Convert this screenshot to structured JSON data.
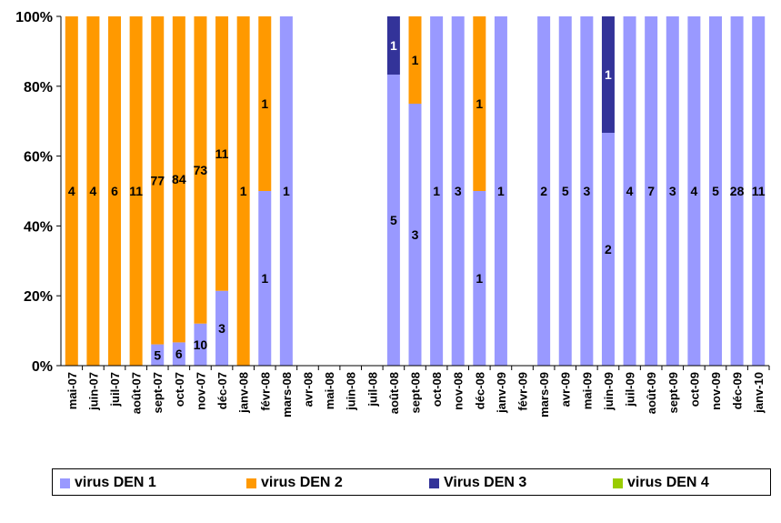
{
  "chart_data": {
    "type": "bar",
    "stacked": "percent",
    "categories": [
      "mai-07",
      "juin-07",
      "juil-07",
      "août-07",
      "sept-07",
      "oct-07",
      "nov-07",
      "déc-07",
      "janv-08",
      "févr-08",
      "mars-08",
      "avr-08",
      "mai-08",
      "juin-08",
      "juil-08",
      "août-08",
      "sept-08",
      "oct-08",
      "nov-08",
      "déc-08",
      "janv-09",
      "févr-09",
      "mars-09",
      "avr-09",
      "mai-09",
      "juin-09",
      "juil-09",
      "août-09",
      "sept-09",
      "oct-09",
      "nov-09",
      "déc-09",
      "janv-10"
    ],
    "series": [
      {
        "name": "virus DEN 1",
        "color": "#9999ff",
        "values": [
          0,
          0,
          0,
          0,
          5,
          6,
          10,
          3,
          0,
          1,
          1,
          0,
          0,
          0,
          0,
          5,
          3,
          1,
          3,
          1,
          1,
          0,
          2,
          5,
          3,
          2,
          4,
          7,
          3,
          4,
          5,
          28,
          11
        ]
      },
      {
        "name": "virus DEN 2",
        "color": "#ff9900",
        "values": [
          4,
          4,
          6,
          11,
          77,
          84,
          73,
          11,
          1,
          1,
          0,
          0,
          0,
          0,
          0,
          0,
          1,
          0,
          0,
          1,
          0,
          0,
          0,
          0,
          0,
          0,
          0,
          0,
          0,
          0,
          0,
          0,
          0
        ]
      },
      {
        "name": "Virus DEN 3",
        "color": "#333399",
        "values": [
          0,
          0,
          0,
          0,
          0,
          0,
          0,
          0,
          0,
          0,
          0,
          0,
          0,
          0,
          0,
          1,
          0,
          0,
          0,
          0,
          0,
          0,
          0,
          0,
          0,
          1,
          0,
          0,
          0,
          0,
          0,
          0,
          0
        ]
      },
      {
        "name": "virus DEN 4",
        "color": "#99cc00",
        "values": [
          0,
          0,
          0,
          0,
          0,
          0,
          0,
          0,
          0,
          0,
          0,
          0,
          0,
          0,
          0,
          0,
          0,
          0,
          0,
          0,
          0,
          0,
          0,
          0,
          0,
          0,
          0,
          0,
          0,
          0,
          0,
          0,
          0
        ]
      }
    ],
    "y_ticks": [
      "0%",
      "20%",
      "40%",
      "60%",
      "80%",
      "100%"
    ],
    "ylim": [
      0,
      100
    ],
    "grid": false,
    "legend_position": "bottom",
    "title": "",
    "xlabel": "",
    "ylabel": ""
  }
}
